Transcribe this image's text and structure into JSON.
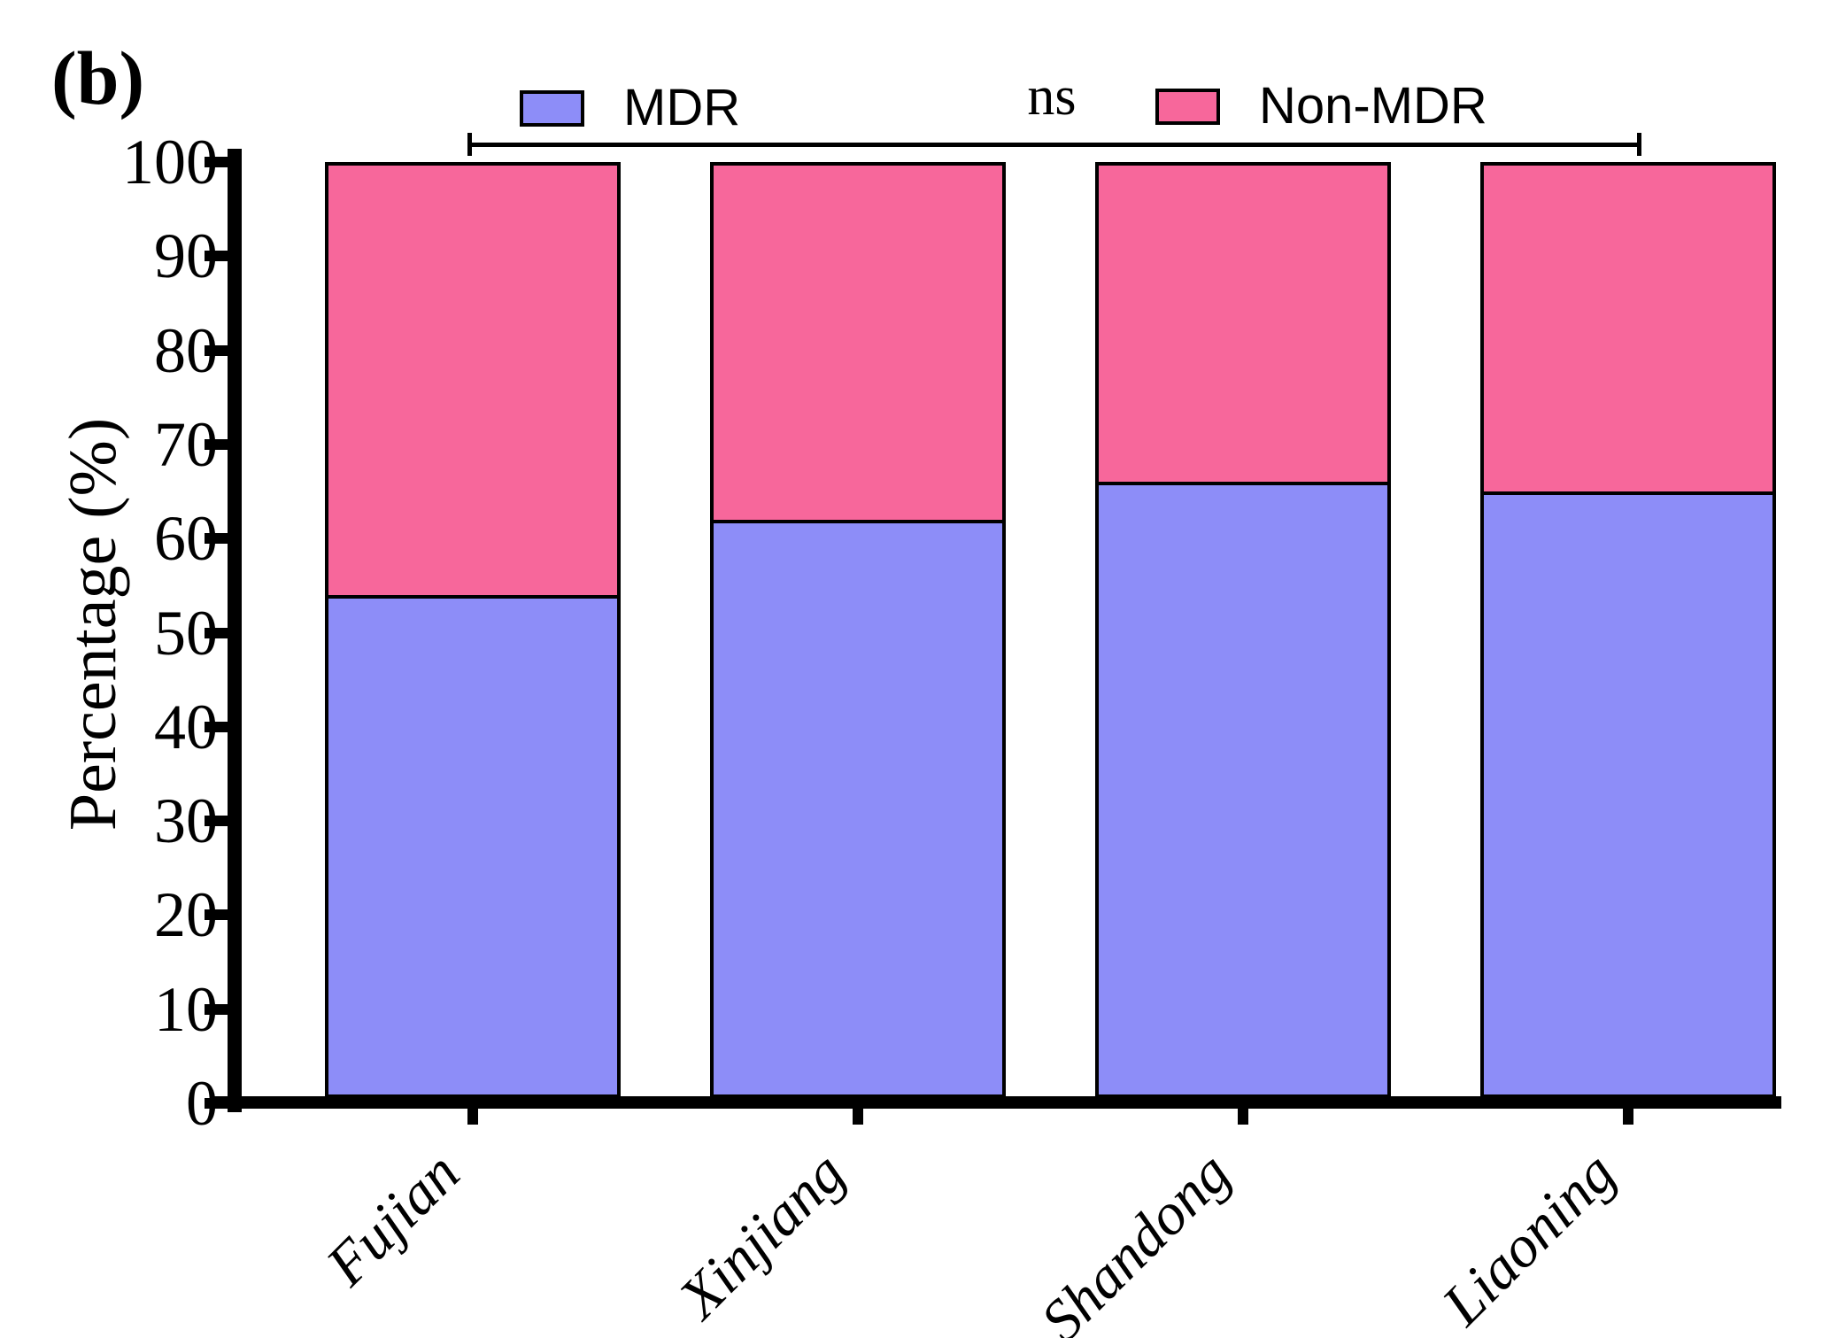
{
  "panel_label": "(b)",
  "y_axis": {
    "title": "Percentage (%)",
    "ticks": [
      0,
      10,
      20,
      30,
      40,
      50,
      60,
      70,
      80,
      90,
      100
    ]
  },
  "chart_data": {
    "type": "bar",
    "stacked": true,
    "categories": [
      "Fujian",
      "Xinjiang",
      "Shandong",
      "Liaoning"
    ],
    "series": [
      {
        "name": "MDR",
        "color": "#8D8DF8",
        "values": [
          54,
          62,
          66,
          65
        ]
      },
      {
        "name": "Non-MDR",
        "color": "#F7679B",
        "values": [
          46,
          38,
          34,
          35
        ]
      }
    ],
    "title": "",
    "xlabel": "",
    "ylabel": "Percentage (%)",
    "ylim": [
      0,
      100
    ],
    "grid": false,
    "legend_position": "top",
    "annotation": {
      "text": "ns",
      "span": [
        "Fujian",
        "Liaoning"
      ]
    }
  }
}
